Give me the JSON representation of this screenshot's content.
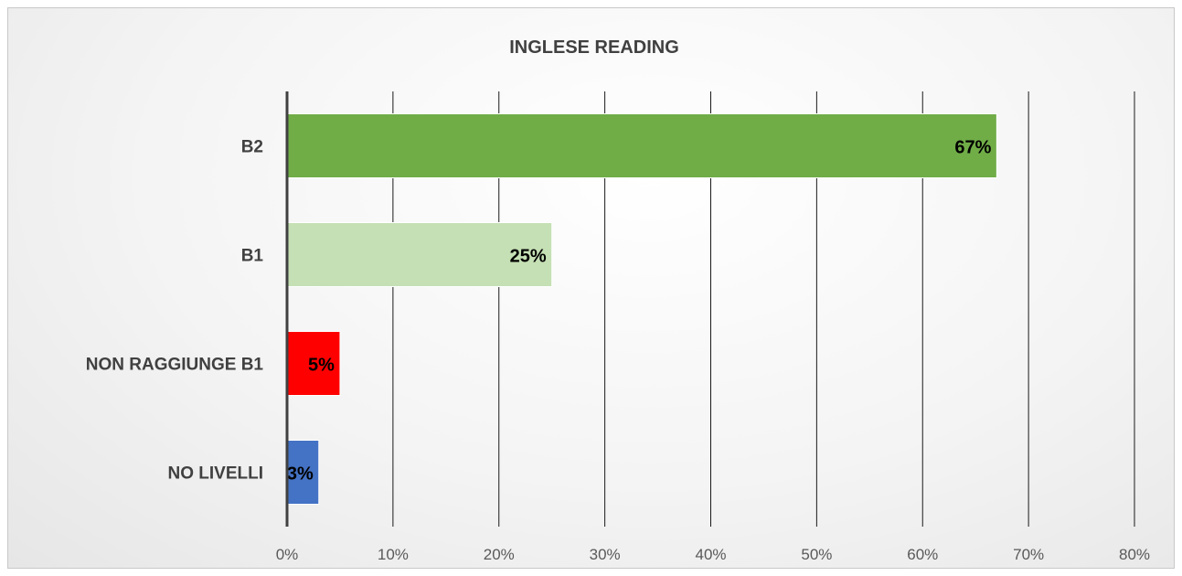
{
  "chart_data": {
    "type": "bar",
    "orientation": "horizontal",
    "title": "INGLESE READING",
    "categories": [
      "B2",
      "B1",
      "NON RAGGIUNGE  B1",
      "NO LIVELLI"
    ],
    "values": [
      67,
      25,
      5,
      3
    ],
    "data_labels": [
      "67%",
      "25%",
      "5%",
      "3%"
    ],
    "colors": [
      "#70ad47",
      "#c5e0b4",
      "#ff0000",
      "#4472c4"
    ],
    "x_ticks": [
      "0%",
      "10%",
      "20%",
      "30%",
      "40%",
      "50%",
      "60%",
      "70%",
      "80%"
    ],
    "xlim": [
      0,
      80
    ],
    "grid": true,
    "xlabel": "",
    "ylabel": ""
  }
}
